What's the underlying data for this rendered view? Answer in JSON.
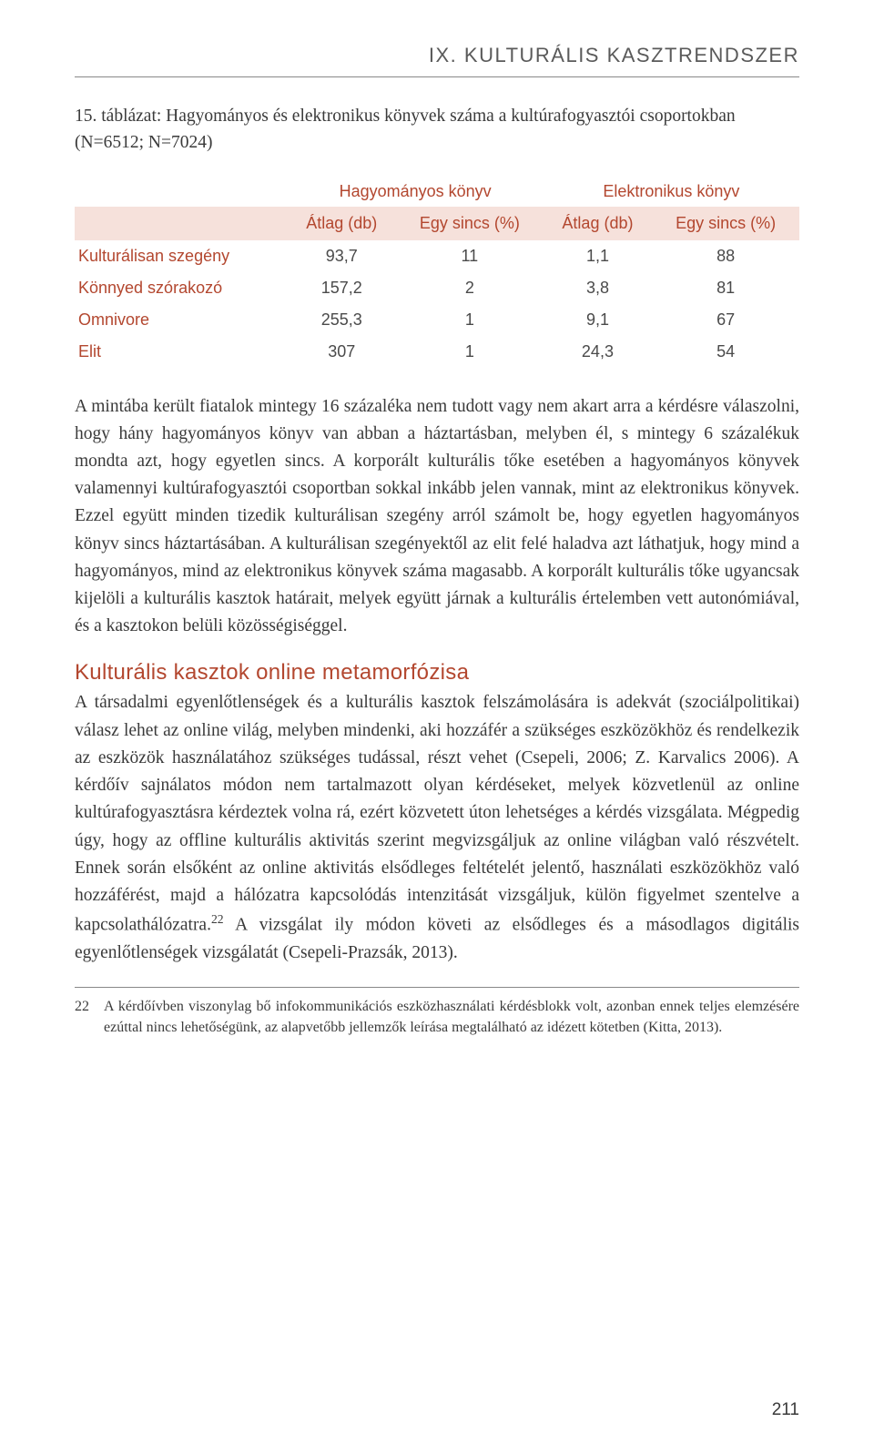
{
  "chapter": {
    "title": "IX. KULTURÁLIS KASZTRENDSZER"
  },
  "table": {
    "caption": "15. táblázat: Hagyományos és elektronikus könyvek száma a kultúrafogyasztói csoportokban (N=6512; N=7024)",
    "group_headers": [
      "Hagyományos könyv",
      "Elektronikus könyv"
    ],
    "sub_headers": [
      "Átlag (db)",
      "Egy sincs (%)",
      "Átlag (db)",
      "Egy sincs (%)"
    ],
    "rows": [
      {
        "label": "Kulturálisan szegény",
        "values": [
          "93,7",
          "11",
          "1,1",
          "88"
        ]
      },
      {
        "label": "Könnyed szórakozó",
        "values": [
          "157,2",
          "2",
          "3,8",
          "81"
        ]
      },
      {
        "label": "Omnivore",
        "values": [
          "255,3",
          "1",
          "9,1",
          "67"
        ]
      },
      {
        "label": "Elit",
        "values": [
          "307",
          "1",
          "24,3",
          "54"
        ]
      }
    ],
    "colors": {
      "header_bg": "#f6e1db",
      "accent": "#b3472f",
      "text": "#3a3a3a"
    }
  },
  "paragraphs": {
    "p1": "A mintába került fiatalok mintegy 16 százaléka nem tudott vagy nem akart arra a kérdésre válaszolni, hogy hány hagyományos könyv van abban a háztartásban, melyben él, s mintegy 6 százalékuk mondta azt, hogy egyetlen sincs. A korporált kulturális tőke esetében a hagyományos könyvek valamennyi kultúrafogyasztói csoportban sokkal inkább jelen vannak, mint az elektronikus könyvek. Ezzel együtt minden tizedik kulturálisan szegény arról számolt be, hogy egyetlen hagyományos könyv sincs háztartásában. A kulturálisan szegényektől az elit felé haladva azt láthatjuk, hogy mind a hagyományos, mind az elektronikus könyvek száma magasabb. A korporált kulturális tőke ugyancsak kijelöli a kulturális kasztok határait, melyek együtt járnak a kulturális értelemben vett autonómiával, és a kasztokon belüli közösségiséggel.",
    "heading": "Kulturális kasztok online metamorfózisa",
    "p2_a": "A társadalmi egyenlőtlenségek és a kulturális kasztok felszámolására is adekvát (szociálpolitikai) válasz lehet az online világ, melyben mindenki, aki hozzáfér a szükséges eszközökhöz és rendelkezik az eszközök használatához szükséges tudással, részt vehet (Csepeli, 2006; Z. Karvalics 2006). A kérdőív sajnálatos módon nem tartalmazott olyan kérdéseket, melyek közvetlenül az online kultúrafogyasztásra kérdeztek volna rá, ezért közvetett úton lehetséges a kérdés vizsgálata. Mégpedig úgy, hogy az offline kulturális aktivitás szerint megvizsgáljuk az online világban való részvételt. Ennek során elsőként az online aktivitás elsődleges feltételét jelentő, használati eszközökhöz való hozzáférést, majd a hálózatra kapcsolódás intenzitását vizsgáljuk, külön figyelmet szentelve a kapcsolathálózatra.",
    "p2_sup": "22",
    "p2_b": " A vizsgálat ily módon követi az elsődleges és a másodlagos digitális egyenlőtlenségek vizsgálatát (Csepeli-Prazsák, 2013)."
  },
  "footnote": {
    "num": "22",
    "text": "A kérdőívben viszonylag bő infokommunikációs eszközhasználati kérdésblokk volt, azonban ennek teljes elemzésére ezúttal nincs lehetőségünk, az alapvetőbb jellemzők leírása megtalálható az idézett kötetben (Kitta, 2013)."
  },
  "page_number": "211"
}
